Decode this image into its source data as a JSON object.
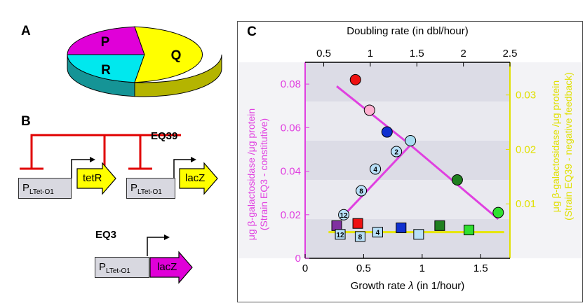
{
  "panels": {
    "a": "A",
    "b": "B",
    "c": "C"
  },
  "pie": {
    "labels": [
      "P",
      "Q",
      "R"
    ],
    "colors": {
      "P": "#e000d8",
      "Q": "#ffff00",
      "R": "#00e8ee"
    }
  },
  "circuit": {
    "promoter_main": "P",
    "promoter_sub": "LTet-O1",
    "genes": [
      "tetR",
      "lacZ",
      "lacZ"
    ],
    "strains": [
      "EQ39",
      "EQ3"
    ]
  },
  "chart_data": {
    "type": "scatter",
    "title": "",
    "top_axis": {
      "label": "Doubling rate (in dbl/hour)",
      "ticks": [
        "0.5",
        "1",
        "1.5",
        "2",
        "2.5"
      ],
      "range": [
        0.3,
        2.5
      ]
    },
    "xlabel_prefix": "Growth rate ",
    "xlabel_symbol": "λ",
    "xlabel_suffix": " (in 1/hour)",
    "xlim": [
      0,
      1.75
    ],
    "x_ticks": [
      "0",
      "0.5",
      "1",
      "1.5"
    ],
    "left_axis": {
      "label_line1": "μg β-galactosidase /μg protein",
      "label_line2": "(Strain EQ3 - constitutive)",
      "ticks": [
        "0",
        "0.02",
        "0.04",
        "0.06",
        "0.08"
      ],
      "range": [
        0,
        0.09
      ],
      "color": "#e040e0"
    },
    "right_axis": {
      "label_line1": "μg β-galactosidase /μg protein",
      "label_line2": "(Strain EQ39 - negative feedback)",
      "ticks": [
        "0.01",
        "0.02",
        "0.03"
      ],
      "range": [
        0,
        0.036
      ],
      "color": "#e0e000"
    },
    "circles": [
      {
        "x": 0.43,
        "y": 0.082,
        "color": "#ee1111"
      },
      {
        "x": 0.55,
        "y": 0.068,
        "color": "#ffb0d0"
      },
      {
        "x": 0.7,
        "y": 0.058,
        "color": "#1030d0"
      },
      {
        "x": 0.9,
        "y": 0.054,
        "color": "#a8dcf0"
      },
      {
        "x": 1.3,
        "y": 0.036,
        "color": "#208020"
      },
      {
        "x": 1.65,
        "y": 0.021,
        "color": "#30e030"
      }
    ],
    "numbered": [
      {
        "x": 0.78,
        "y": 0.049,
        "label": "2"
      },
      {
        "x": 0.6,
        "y": 0.041,
        "label": "4"
      },
      {
        "x": 0.48,
        "y": 0.031,
        "label": "8"
      },
      {
        "x": 0.33,
        "y": 0.02,
        "label": "12"
      }
    ],
    "squares": [
      {
        "x": 0.27,
        "y": 0.015,
        "color": "#8030a0"
      },
      {
        "x": 0.45,
        "y": 0.016,
        "color": "#ee1111"
      },
      {
        "x": 0.82,
        "y": 0.014,
        "color": "#1030d0"
      },
      {
        "x": 0.97,
        "y": 0.011,
        "color": "#b8e0f8"
      },
      {
        "x": 1.15,
        "y": 0.015,
        "color": "#208020"
      },
      {
        "x": 1.4,
        "y": 0.013,
        "color": "#30e030"
      }
    ],
    "numbered_squares": [
      {
        "x": 0.3,
        "y": 0.011,
        "label": "12"
      },
      {
        "x": 0.47,
        "y": 0.01,
        "label": "8"
      },
      {
        "x": 0.62,
        "y": 0.012,
        "label": "4"
      }
    ],
    "lines": [
      {
        "color": "#e040e0",
        "points": [
          [
            0.27,
            0.079
          ],
          [
            0.9,
            0.052
          ],
          [
            1.65,
            0.018
          ]
        ]
      },
      {
        "color": "#e040e0",
        "points": [
          [
            0.3,
            0.018
          ],
          [
            0.9,
            0.052
          ]
        ]
      },
      {
        "color": "#e6e600",
        "points": [
          [
            0.2,
            0.012
          ],
          [
            1.7,
            0.012
          ]
        ]
      }
    ],
    "grid": true
  }
}
